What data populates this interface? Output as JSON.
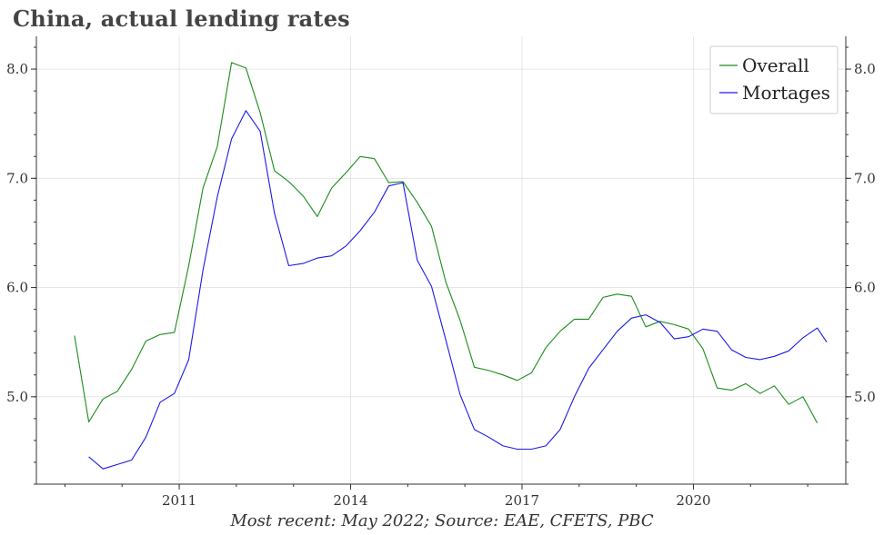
{
  "title": "China, actual lending rates",
  "source_note": "Most recent: May 2022; Source: EAE, CFETS, PBC",
  "colors": {
    "overall": "#1a8c1a",
    "mortages": "#1a1ae6",
    "grid": "#e6e6e6",
    "axis": "#333333"
  },
  "chart_data": {
    "type": "line",
    "title": "China, actual lending rates",
    "xlabel": "",
    "ylabel": "",
    "x_ticks": [
      "2011",
      "2014",
      "2017",
      "2020"
    ],
    "x_range": [
      "2008-07",
      "2022-09"
    ],
    "y_ticks": [
      "5.0",
      "6.0",
      "7.0",
      "8.0"
    ],
    "ylim": [
      4.2,
      8.3
    ],
    "grid": true,
    "secondary_y_axis": true,
    "legend_position": "top-right",
    "series": [
      {
        "name": "Overall",
        "color": "#1a8c1a",
        "points": [
          [
            "2009-03",
            5.56
          ],
          [
            "2009-06",
            4.77
          ],
          [
            "2009-09",
            4.98
          ],
          [
            "2009-12",
            5.05
          ],
          [
            "2010-03",
            5.25
          ],
          [
            "2010-06",
            5.51
          ],
          [
            "2010-09",
            5.57
          ],
          [
            "2010-12",
            5.59
          ],
          [
            "2011-03",
            6.2
          ],
          [
            "2011-06",
            6.91
          ],
          [
            "2011-09",
            7.29
          ],
          [
            "2011-12",
            8.06
          ],
          [
            "2012-03",
            8.01
          ],
          [
            "2012-06",
            7.6
          ],
          [
            "2012-09",
            7.07
          ],
          [
            "2012-12",
            6.97
          ],
          [
            "2013-03",
            6.84
          ],
          [
            "2013-06",
            6.65
          ],
          [
            "2013-09",
            6.91
          ],
          [
            "2013-12",
            7.05
          ],
          [
            "2014-03",
            7.2
          ],
          [
            "2014-06",
            7.18
          ],
          [
            "2014-09",
            6.96
          ],
          [
            "2014-12",
            6.97
          ],
          [
            "2015-03",
            6.78
          ],
          [
            "2015-06",
            6.56
          ],
          [
            "2015-09",
            6.05
          ],
          [
            "2015-12",
            5.7
          ],
          [
            "2016-03",
            5.27
          ],
          [
            "2016-06",
            5.24
          ],
          [
            "2016-09",
            5.2
          ],
          [
            "2016-12",
            5.15
          ],
          [
            "2017-03",
            5.22
          ],
          [
            "2017-06",
            5.45
          ],
          [
            "2017-09",
            5.6
          ],
          [
            "2017-12",
            5.71
          ],
          [
            "2018-03",
            5.71
          ],
          [
            "2018-06",
            5.91
          ],
          [
            "2018-09",
            5.94
          ],
          [
            "2018-12",
            5.92
          ],
          [
            "2019-03",
            5.64
          ],
          [
            "2019-06",
            5.69
          ],
          [
            "2019-09",
            5.66
          ],
          [
            "2019-12",
            5.62
          ],
          [
            "2020-03",
            5.44
          ],
          [
            "2020-06",
            5.08
          ],
          [
            "2020-09",
            5.06
          ],
          [
            "2020-12",
            5.12
          ],
          [
            "2021-03",
            5.03
          ],
          [
            "2021-06",
            5.1
          ],
          [
            "2021-09",
            4.93
          ],
          [
            "2021-12",
            5.0
          ],
          [
            "2022-03",
            4.76
          ]
        ]
      },
      {
        "name": "Mortages",
        "color": "#1a1ae6",
        "points": [
          [
            "2009-06",
            4.45
          ],
          [
            "2009-09",
            4.34
          ],
          [
            "2009-12",
            4.38
          ],
          [
            "2010-03",
            4.42
          ],
          [
            "2010-06",
            4.63
          ],
          [
            "2010-09",
            4.95
          ],
          [
            "2010-12",
            5.03
          ],
          [
            "2011-03",
            5.34
          ],
          [
            "2011-06",
            6.16
          ],
          [
            "2011-09",
            6.83
          ],
          [
            "2011-12",
            7.36
          ],
          [
            "2012-03",
            7.62
          ],
          [
            "2012-06",
            7.43
          ],
          [
            "2012-09",
            6.68
          ],
          [
            "2012-12",
            6.2
          ],
          [
            "2013-03",
            6.22
          ],
          [
            "2013-06",
            6.27
          ],
          [
            "2013-09",
            6.29
          ],
          [
            "2013-12",
            6.38
          ],
          [
            "2014-03",
            6.52
          ],
          [
            "2014-06",
            6.69
          ],
          [
            "2014-09",
            6.93
          ],
          [
            "2014-12",
            6.96
          ],
          [
            "2015-03",
            6.25
          ],
          [
            "2015-06",
            6.01
          ],
          [
            "2015-09",
            5.52
          ],
          [
            "2015-12",
            5.02
          ],
          [
            "2016-03",
            4.7
          ],
          [
            "2016-06",
            4.63
          ],
          [
            "2016-09",
            4.55
          ],
          [
            "2016-12",
            4.52
          ],
          [
            "2017-03",
            4.52
          ],
          [
            "2017-06",
            4.55
          ],
          [
            "2017-09",
            4.7
          ],
          [
            "2017-12",
            5.0
          ],
          [
            "2018-03",
            5.26
          ],
          [
            "2018-06",
            5.43
          ],
          [
            "2018-09",
            5.6
          ],
          [
            "2018-12",
            5.72
          ],
          [
            "2019-03",
            5.75
          ],
          [
            "2019-06",
            5.68
          ],
          [
            "2019-09",
            5.53
          ],
          [
            "2019-12",
            5.55
          ],
          [
            "2020-03",
            5.62
          ],
          [
            "2020-06",
            5.6
          ],
          [
            "2020-09",
            5.43
          ],
          [
            "2020-12",
            5.36
          ],
          [
            "2021-03",
            5.34
          ],
          [
            "2021-06",
            5.37
          ],
          [
            "2021-09",
            5.42
          ],
          [
            "2021-12",
            5.54
          ],
          [
            "2022-03",
            5.63
          ],
          [
            "2022-05",
            5.5
          ]
        ]
      }
    ]
  }
}
